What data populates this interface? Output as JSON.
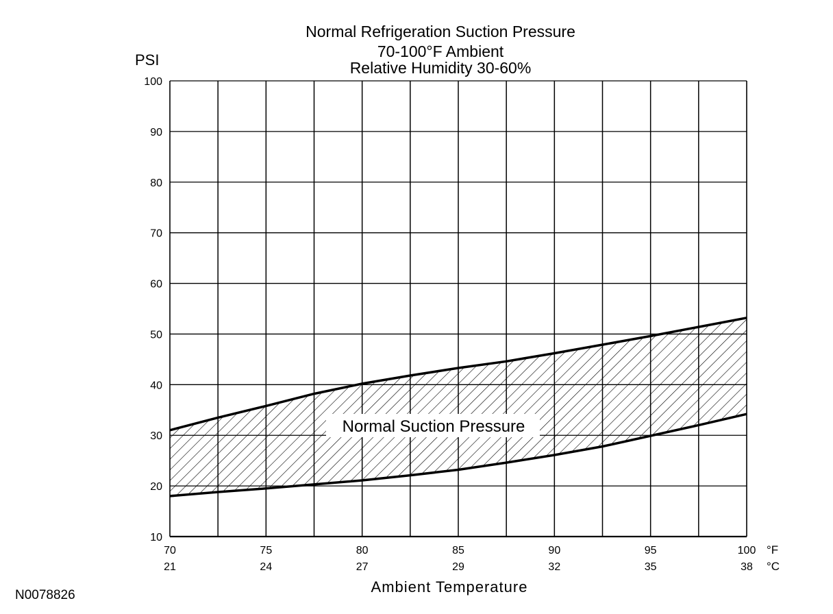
{
  "figure_id": "N0078826",
  "chart_data": {
    "type": "area",
    "title_lines": [
      "Normal Refrigeration Suction Pressure",
      "70-100°F Ambient",
      "Relative Humidity 30-60%"
    ],
    "ylabel": "PSI",
    "xlabel": "Ambient Temperature",
    "x_unit_f": "°F",
    "x_unit_c": "°C",
    "xlim": [
      70,
      100
    ],
    "ylim": [
      10,
      100
    ],
    "yticks": [
      10,
      20,
      30,
      40,
      50,
      60,
      70,
      80,
      90,
      100
    ],
    "xticks_f": [
      70,
      75,
      80,
      85,
      90,
      95,
      100
    ],
    "xticks_c": [
      21,
      24,
      27,
      29,
      32,
      35,
      38
    ],
    "grid": true,
    "region_label": "Normal Suction Pressure",
    "upper_bound": {
      "x": [
        70,
        72.5,
        75,
        77.5,
        80,
        82.5,
        85,
        87.5,
        90,
        92.5,
        95,
        97.5,
        100
      ],
      "y": [
        31,
        33.5,
        35.8,
        38.2,
        40.2,
        41.8,
        43.3,
        44.6,
        46.2,
        47.9,
        49.6,
        51.4,
        53.2
      ]
    },
    "lower_bound": {
      "x": [
        70,
        72.5,
        75,
        77.5,
        80,
        82.5,
        85,
        87.5,
        90,
        92.5,
        95,
        97.5,
        100
      ],
      "y": [
        18,
        18.8,
        19.5,
        20.3,
        21.1,
        22.1,
        23.2,
        24.6,
        26.1,
        27.8,
        29.9,
        32,
        34.2
      ]
    }
  }
}
